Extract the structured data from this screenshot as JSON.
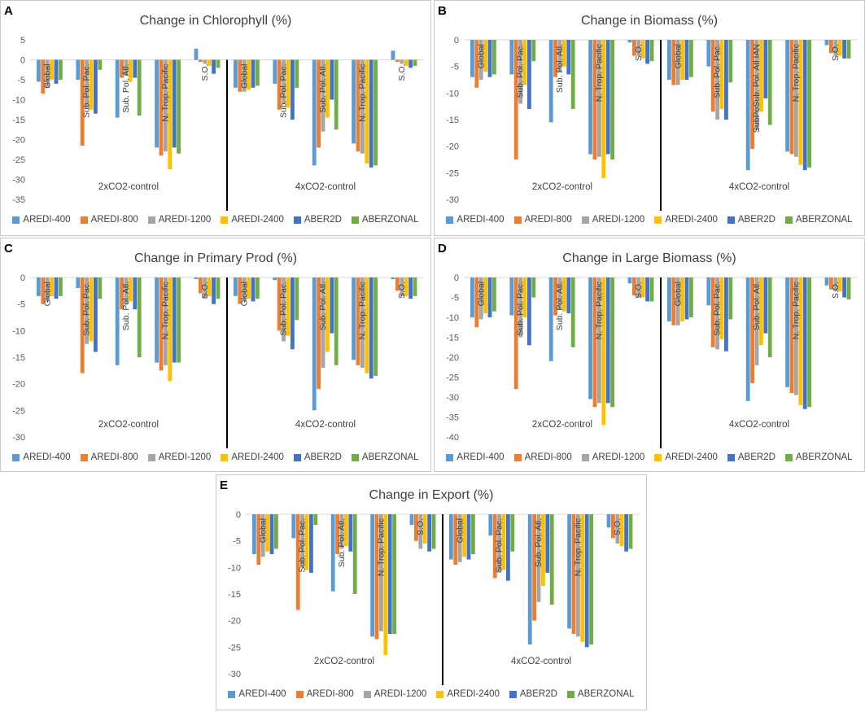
{
  "legend_series": [
    {
      "name": "AREDI-400",
      "color": "#5b9bd5"
    },
    {
      "name": "AREDI-800",
      "color": "#ed7d31"
    },
    {
      "name": "AREDI-1200",
      "color": "#a5a5a5"
    },
    {
      "name": "AREDI-2400",
      "color": "#ffc000"
    },
    {
      "name": "ABER2D",
      "color": "#4472c4"
    },
    {
      "name": "ABERZONAL",
      "color": "#70ad47"
    }
  ],
  "chart_data": [
    {
      "panel": "A",
      "type": "bar",
      "title": "Change in Chlorophyll (%)",
      "ylim": [
        -35,
        5
      ],
      "ytick_step": 5,
      "group_labels": [
        "2xCO2-control",
        "4xCO2-control"
      ],
      "categories": [
        "Global",
        "Sub. Pol. Pac.",
        "Sub. Pol. Atl.",
        "N. Trop. Pacific",
        "S.O.",
        "Global",
        "Sub. Pol. Pac.",
        "Sub. Pol. Atl.",
        "N. Trop. Pacific",
        "S.O."
      ],
      "series": [
        {
          "name": "AREDI-400",
          "values": [
            -5.5,
            -5,
            -14.5,
            -22,
            2.8,
            -7,
            -6,
            -26.5,
            -21,
            2.3
          ]
        },
        {
          "name": "AREDI-800",
          "values": [
            -8.5,
            -21.5,
            -4.5,
            -24,
            -0.5,
            -8,
            -12.5,
            -22,
            -23,
            -0.5
          ]
        },
        {
          "name": "AREDI-1200",
          "values": [
            -7,
            -12,
            -4,
            -23,
            -1,
            -8,
            -11,
            -18,
            -23.5,
            -1
          ]
        },
        {
          "name": "AREDI-2400",
          "values": [
            -5,
            -12.5,
            -5.5,
            -27.5,
            -1.5,
            -7.5,
            -12,
            -14.5,
            -26,
            -1.5
          ]
        },
        {
          "name": "ABER2D",
          "values": [
            -6,
            -13.5,
            -4.5,
            -22,
            -3.5,
            -7,
            -15,
            -10,
            -27,
            -2
          ]
        },
        {
          "name": "ABERZONAL",
          "values": [
            -5,
            -2.5,
            -14,
            -23.5,
            -2,
            -6.5,
            -7,
            -17.5,
            -26.5,
            -1.5
          ]
        }
      ]
    },
    {
      "panel": "B",
      "type": "bar",
      "title": "Change in Biomass (%)",
      "ylim": [
        -30,
        0
      ],
      "ytick_step": 5,
      "group_labels": [
        "2xCO2-control",
        "4xCO2-control"
      ],
      "categories": [
        "Global",
        "Sub. Pol. Pac.",
        "Sub. Pol. Atl.",
        "N. Trop. Pacific",
        "S.O.",
        "Global",
        "Sub. Pol. Pac.",
        "SubPoSub. Pol. Atl.IAN",
        "N. Trop. Pacific",
        "S.O."
      ],
      "series": [
        {
          "name": "AREDI-400",
          "values": [
            -7,
            -6.5,
            -15.5,
            -21.5,
            -0.5,
            -7.5,
            -5,
            -24.5,
            -21,
            -1
          ]
        },
        {
          "name": "AREDI-800",
          "values": [
            -9,
            -22.5,
            -7,
            -22.5,
            -3,
            -8.5,
            -13.5,
            -20.5,
            -21.5,
            -2.5
          ]
        },
        {
          "name": "AREDI-1200",
          "values": [
            -7.5,
            -12,
            -6,
            -22,
            -3,
            -8.5,
            -15,
            -17,
            -22,
            -3
          ]
        },
        {
          "name": "AREDI-2400",
          "values": [
            -6,
            -8.5,
            -5,
            -26,
            -3.5,
            -7.5,
            -13,
            -13.5,
            -23.5,
            -3
          ]
        },
        {
          "name": "ABER2D",
          "values": [
            -7,
            -13,
            -6.5,
            -21.5,
            -4.5,
            -7.5,
            -15,
            -11,
            -24.5,
            -3.5
          ]
        },
        {
          "name": "ABERZONAL",
          "values": [
            -6.5,
            -4,
            -13,
            -22.5,
            -4,
            -7,
            -8,
            -16,
            -24,
            -3.5
          ]
        }
      ]
    },
    {
      "panel": "C",
      "type": "bar",
      "title": "Change in Primary Prod (%)",
      "ylim": [
        -30,
        0
      ],
      "ytick_step": 5,
      "group_labels": [
        "2xCO2-control",
        "4xCO2-control"
      ],
      "categories": [
        "Global",
        "Sub. Pol. Pac.",
        "Sub. Pol. Atl.",
        "N. Trop. Pacific",
        "S.O.",
        "Global",
        "Sub. Pol. Pac.",
        "Sub. Pol. Atl.",
        "N. Trop. Pacific",
        "S.O."
      ],
      "series": [
        {
          "name": "AREDI-400",
          "values": [
            -3.5,
            -2,
            -16.5,
            -16,
            -0.3,
            -3.5,
            -0.5,
            -25,
            -15.5,
            -0.3
          ]
        },
        {
          "name": "AREDI-800",
          "values": [
            -5,
            -18,
            -6,
            -17.5,
            -3,
            -5,
            -10,
            -21,
            -16.5,
            -2.5
          ]
        },
        {
          "name": "AREDI-1200",
          "values": [
            -4.5,
            -12.5,
            -5,
            -16.5,
            -4,
            -4.5,
            -12,
            -17,
            -17,
            -3.5
          ]
        },
        {
          "name": "AREDI-2400",
          "values": [
            -3.5,
            -12,
            -4.5,
            -19.5,
            -3.5,
            -4,
            -11,
            -14,
            -18,
            -3.5
          ]
        },
        {
          "name": "ABER2D",
          "values": [
            -4,
            -14,
            -6,
            -16,
            -5,
            -4.5,
            -13.5,
            -10.5,
            -19,
            -4
          ]
        },
        {
          "name": "ABERZONAL",
          "values": [
            -3.5,
            -4,
            -15,
            -16,
            -4,
            -4,
            -8,
            -16.5,
            -18.5,
            -3.5
          ]
        }
      ]
    },
    {
      "panel": "D",
      "type": "bar",
      "title": "Change in Large Biomass (%)",
      "ylim": [
        -40,
        0
      ],
      "ytick_step": 5,
      "group_labels": [
        "2xCO2-control",
        "4xCO2-control"
      ],
      "categories": [
        "Global",
        "Sub. Pol. Pac.",
        "Sub. Pol. Atl.",
        "N. Trop. Pacific",
        "S.O.",
        "Global",
        "Sub. Pol. Pac.",
        "Sub. Pol. Atl.",
        "N. Trop. Pacific",
        "S.O."
      ],
      "series": [
        {
          "name": "AREDI-400",
          "values": [
            -10,
            -9.5,
            -21,
            -30.5,
            -1.5,
            -11,
            -7,
            -31,
            -27.5,
            -2
          ]
        },
        {
          "name": "AREDI-800",
          "values": [
            -12.5,
            -28,
            -9.5,
            -32.5,
            -4.5,
            -12,
            -17.5,
            -26.5,
            -29,
            -3
          ]
        },
        {
          "name": "AREDI-1200",
          "values": [
            -10.5,
            -15,
            -8,
            -31.5,
            -5,
            -12,
            -18,
            -22,
            -29.5,
            -3.5
          ]
        },
        {
          "name": "AREDI-2400",
          "values": [
            -9,
            -10,
            -8.5,
            -37,
            -5,
            -11,
            -15.5,
            -17,
            -32,
            -3.5
          ]
        },
        {
          "name": "ABER2D",
          "values": [
            -10,
            -17,
            -9,
            -31.5,
            -6,
            -10.5,
            -18.5,
            -14,
            -33,
            -5
          ]
        },
        {
          "name": "ABERZONAL",
          "values": [
            -8.5,
            -5,
            -17.5,
            -32.5,
            -6,
            -10,
            -10.5,
            -20,
            -32.5,
            -5.5
          ]
        }
      ]
    },
    {
      "panel": "E",
      "type": "bar",
      "title": "Change in Export (%)",
      "ylim": [
        -30,
        0
      ],
      "ytick_step": 5,
      "group_labels": [
        "2xCO2-control",
        "4xCO2-control"
      ],
      "categories": [
        "Global",
        "Sub. Pol. Pac.",
        "Sub. Pol. Atl.",
        "N. Trop. Pacific",
        "S.O.",
        "Global",
        "Sub. Pol. Pac.",
        "Sub. Pol. Atl.",
        "N. Trop. Pacific",
        "S.O."
      ],
      "series": [
        {
          "name": "AREDI-400",
          "values": [
            -7.5,
            -4.5,
            -14.5,
            -23,
            -2,
            -8.5,
            -4,
            -24.5,
            -21.5,
            -2.5
          ]
        },
        {
          "name": "AREDI-800",
          "values": [
            -9.5,
            -18,
            -7.5,
            -23.5,
            -5,
            -9.5,
            -12,
            -20,
            -22.5,
            -4.5
          ]
        },
        {
          "name": "AREDI-1200",
          "values": [
            -8,
            -10,
            -6.5,
            -22,
            -6.5,
            -9,
            -11,
            -16.5,
            -23,
            -5.5
          ]
        },
        {
          "name": "AREDI-2400",
          "values": [
            -7,
            -10.5,
            -6,
            -26.5,
            -5.5,
            -8,
            -10.5,
            -13.5,
            -24,
            -6
          ]
        },
        {
          "name": "ABER2D",
          "values": [
            -7.5,
            -11,
            -7,
            -22.5,
            -7,
            -8.5,
            -12.5,
            -11,
            -25,
            -7
          ]
        },
        {
          "name": "ABERZONAL",
          "values": [
            -6.5,
            -2,
            -15,
            -22.5,
            -6.5,
            -7.5,
            -7,
            -17,
            -24.5,
            -6.5
          ]
        }
      ]
    }
  ]
}
